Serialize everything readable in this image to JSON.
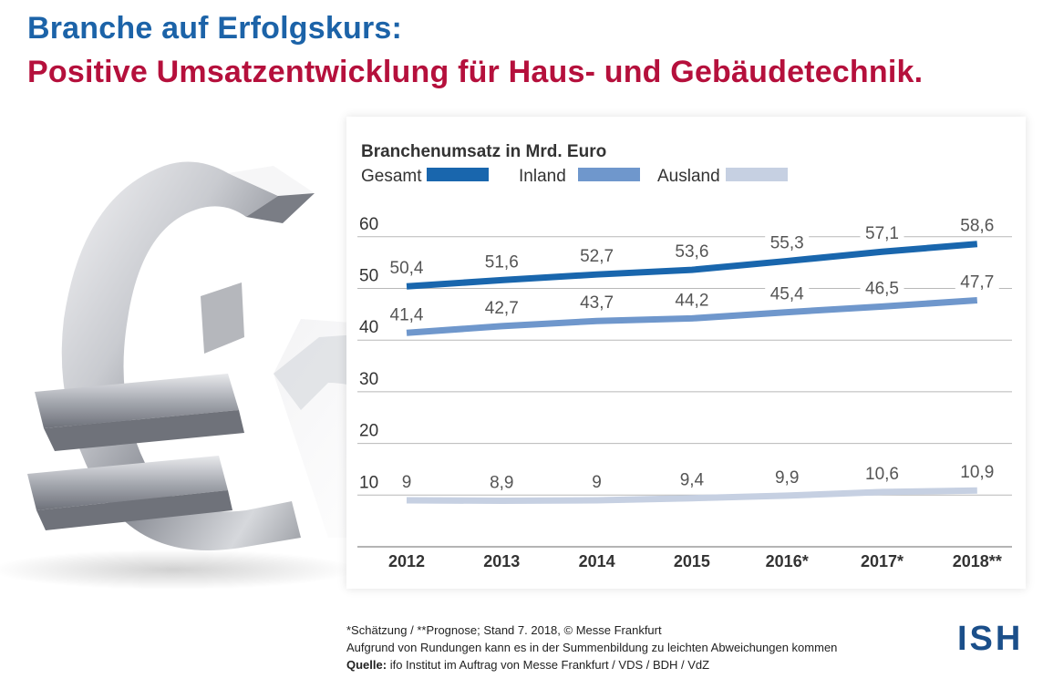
{
  "headline": {
    "line1": "Branche auf Erfolgskurs:",
    "line2": "Positive Umsatzentwicklung für Haus- und Gebäudetechnik."
  },
  "colors": {
    "headline_blue": "#1c63a8",
    "headline_red": "#b5103c",
    "gesamt": "#1966ad",
    "inland": "#6f97cc",
    "ausland": "#c6d0e2"
  },
  "icons": {
    "hero": "euro-arrow-icon"
  },
  "chart_data": {
    "type": "line",
    "title": "Branchenumsatz in Mrd. Euro",
    "categories": [
      "2012",
      "2013",
      "2014",
      "2015",
      "2016*",
      "2017*",
      "2018**"
    ],
    "series": [
      {
        "name": "Gesamt",
        "color": "#1966ad",
        "values": [
          50.4,
          51.6,
          52.7,
          53.6,
          55.3,
          57.1,
          58.6
        ],
        "labels": [
          "50,4",
          "51,6",
          "52,7",
          "53,6",
          "55,3",
          "57,1",
          "58,6"
        ]
      },
      {
        "name": "Inland",
        "color": "#6f97cc",
        "values": [
          41.4,
          42.7,
          43.7,
          44.2,
          45.4,
          46.5,
          47.7
        ],
        "labels": [
          "41,4",
          "42,7",
          "43,7",
          "44,2",
          "45,4",
          "46,5",
          "47,7"
        ]
      },
      {
        "name": "Ausland",
        "color": "#c6d0e2",
        "values": [
          9,
          8.9,
          9,
          9.4,
          9.9,
          10.6,
          10.9
        ],
        "labels": [
          "9",
          "8,9",
          "9",
          "9,4",
          "9,9",
          "10,6",
          "10,9"
        ]
      }
    ],
    "y_ticks": [
      "10",
      "20",
      "30",
      "40",
      "50",
      "60"
    ],
    "y_tick_values": [
      10,
      20,
      30,
      40,
      50,
      60
    ],
    "ylim": [
      0,
      66
    ],
    "grid": true,
    "legend_position": "top-left"
  },
  "footnotes": {
    "note": "*Schätzung / **Prognose; Stand 7. 2018, © Messe Frankfurt",
    "rounding": "Aufgrund von Rundungen kann es in der Summenbildung zu leichten Abweichungen kommen",
    "source_label": "Quelle:",
    "source_text": " ifo Institut im Auftrag von Messe Frankfurt / VDS / BDH / VdZ"
  },
  "logo": {
    "text": "ISH"
  }
}
